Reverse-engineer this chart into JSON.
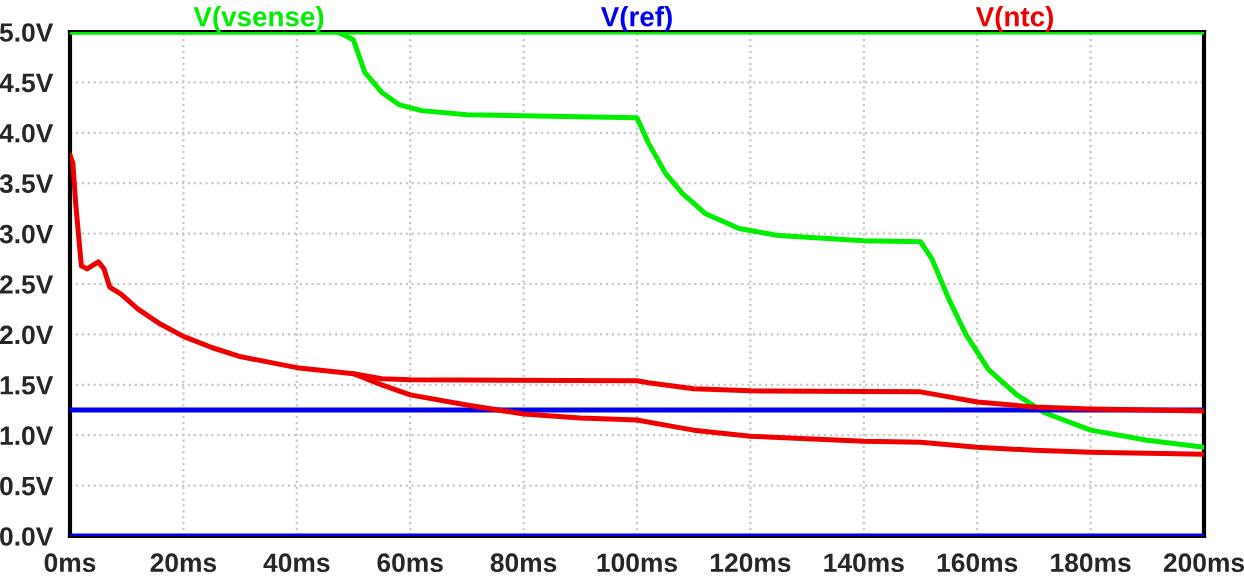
{
  "chart_data": {
    "type": "line",
    "legend": "top",
    "grid": true,
    "line_style": "solid",
    "xlim": [
      0,
      200
    ],
    "ylim": [
      0,
      5
    ],
    "xticks": [
      {
        "value": 0,
        "label": "0ms"
      },
      {
        "value": 20,
        "label": "20ms"
      },
      {
        "value": 40,
        "label": "40ms"
      },
      {
        "value": 60,
        "label": "60ms"
      },
      {
        "value": 80,
        "label": "80ms"
      },
      {
        "value": 100,
        "label": "100ms"
      },
      {
        "value": 120,
        "label": "120ms"
      },
      {
        "value": 140,
        "label": "140ms"
      },
      {
        "value": 160,
        "label": "160ms"
      },
      {
        "value": 180,
        "label": "180ms"
      },
      {
        "value": 200,
        "label": "200ms"
      }
    ],
    "yticks": [
      {
        "value": 0,
        "label": "0.0V"
      },
      {
        "value": 0.5,
        "label": "0.5V"
      },
      {
        "value": 1,
        "label": "1.0V"
      },
      {
        "value": 1.5,
        "label": "1.5V"
      },
      {
        "value": 2,
        "label": "2.0V"
      },
      {
        "value": 2.5,
        "label": "2.5V"
      },
      {
        "value": 3,
        "label": "3.0V"
      },
      {
        "value": 3.5,
        "label": "3.5V"
      },
      {
        "value": 4,
        "label": "4.0V"
      },
      {
        "value": 4.5,
        "label": "4.5V"
      },
      {
        "value": 5,
        "label": "5.0V"
      }
    ],
    "series": [
      {
        "name": "V(vsense)",
        "color": "#00ee00",
        "x": [
          0,
          47,
          48,
          50,
          52,
          55,
          58,
          62,
          70,
          100,
          102,
          105,
          108,
          112,
          118,
          125,
          140,
          150,
          152,
          155,
          158,
          162,
          167,
          172,
          180,
          190,
          200
        ],
        "values": [
          5.0,
          5.0,
          4.98,
          4.92,
          4.6,
          4.4,
          4.28,
          4.22,
          4.18,
          4.15,
          3.9,
          3.6,
          3.4,
          3.2,
          3.05,
          2.98,
          2.93,
          2.92,
          2.75,
          2.35,
          2.0,
          1.65,
          1.4,
          1.22,
          1.05,
          0.95,
          0.88
        ]
      },
      {
        "color": "#00ee00",
        "x": [
          0,
          200
        ],
        "values": [
          5.0,
          5.0
        ]
      },
      {
        "name": "V(ref)",
        "color": "#0000ee",
        "x": [
          0,
          200
        ],
        "values": [
          1.25,
          1.25
        ]
      },
      {
        "color": "#0000ee",
        "x": [
          0,
          200
        ],
        "values": [
          0.0,
          0.0
        ]
      },
      {
        "name": "V(ntc)",
        "color": "#ee0000",
        "x": [
          0,
          0.5,
          1,
          2,
          3,
          5,
          6,
          7,
          9,
          12,
          16,
          20,
          25,
          30,
          40,
          50,
          55,
          60,
          100,
          102,
          110,
          120,
          150,
          155,
          160,
          170,
          180,
          200
        ],
        "values": [
          3.78,
          3.7,
          3.3,
          2.68,
          2.65,
          2.72,
          2.65,
          2.47,
          2.4,
          2.25,
          2.1,
          1.98,
          1.87,
          1.78,
          1.67,
          1.61,
          1.56,
          1.55,
          1.54,
          1.52,
          1.46,
          1.44,
          1.43,
          1.38,
          1.33,
          1.28,
          1.26,
          1.24
        ]
      },
      {
        "color": "#ee0000",
        "x": [
          50,
          55,
          60,
          70,
          80,
          90,
          100,
          105,
          110,
          120,
          140,
          150,
          160,
          170,
          180,
          200
        ],
        "values": [
          1.61,
          1.5,
          1.4,
          1.3,
          1.21,
          1.17,
          1.15,
          1.1,
          1.05,
          0.99,
          0.94,
          0.93,
          0.88,
          0.85,
          0.83,
          0.81
        ]
      }
    ]
  }
}
